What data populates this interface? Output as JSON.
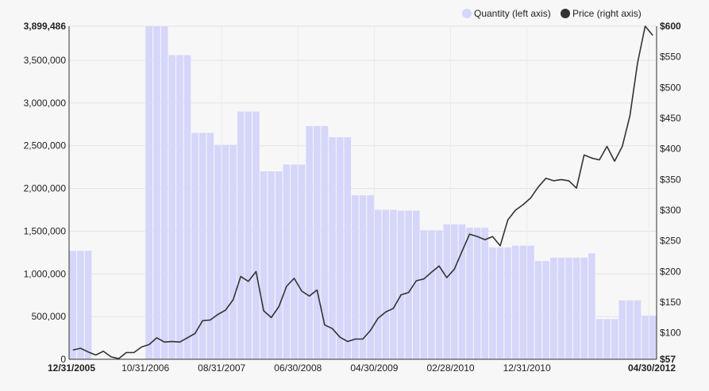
{
  "chart_data": {
    "type": "bar+line",
    "legend": {
      "placement": "top-right",
      "items": [
        {
          "label": "Quantity (left axis)",
          "color": "#d6d6fa"
        },
        {
          "label": "Price (right axis)",
          "color": "#333333"
        }
      ]
    },
    "x_ticks": [
      {
        "label": "12/31/2005",
        "bold": true
      },
      {
        "label": "10/31/2006",
        "bold": false
      },
      {
        "label": "08/31/2007",
        "bold": false
      },
      {
        "label": "06/30/2008",
        "bold": false
      },
      {
        "label": "04/30/2009",
        "bold": false
      },
      {
        "label": "02/28/2010",
        "bold": false
      },
      {
        "label": "12/31/2010",
        "bold": false
      },
      {
        "label": "04/30/2012",
        "bold": true
      }
    ],
    "x_tick_index": [
      0,
      10,
      20,
      30,
      40,
      50,
      60,
      76
    ],
    "left_axis": {
      "min": 0,
      "max": 3899486,
      "ticks": [
        {
          "value": 0,
          "label": "0"
        },
        {
          "value": 500000,
          "label": "500,000"
        },
        {
          "value": 1000000,
          "label": "1,000,000"
        },
        {
          "value": 1500000,
          "label": "1,500,000"
        },
        {
          "value": 2000000,
          "label": "2,000,000"
        },
        {
          "value": 2500000,
          "label": "2,500,000"
        },
        {
          "value": 3000000,
          "label": "3,000,000"
        },
        {
          "value": 3500000,
          "label": "3,500,000"
        },
        {
          "value": 3899486,
          "label": "3,899,486",
          "bold": true
        }
      ]
    },
    "right_axis": {
      "min": 57,
      "max": 600,
      "ticks": [
        {
          "value": 57,
          "label": "$57",
          "bold": true
        },
        {
          "value": 100,
          "label": "$100"
        },
        {
          "value": 150,
          "label": "$150"
        },
        {
          "value": 200,
          "label": "$200"
        },
        {
          "value": 250,
          "label": "$250"
        },
        {
          "value": 300,
          "label": "$300"
        },
        {
          "value": 350,
          "label": "$350"
        },
        {
          "value": 400,
          "label": "$400"
        },
        {
          "value": 450,
          "label": "$450"
        },
        {
          "value": 500,
          "label": "$500"
        },
        {
          "value": 550,
          "label": "$550"
        },
        {
          "value": 600,
          "label": "$600",
          "bold": true
        }
      ]
    },
    "grid": true,
    "series": [
      {
        "name": "Quantity (left axis)",
        "kind": "bar",
        "values": [
          1270000,
          1270000,
          1270000,
          0,
          0,
          0,
          0,
          0,
          0,
          0,
          3899486,
          3899486,
          3899486,
          3560000,
          3560000,
          3560000,
          2650000,
          2650000,
          2650000,
          2510000,
          2510000,
          2510000,
          2900000,
          2900000,
          2900000,
          2200000,
          2200000,
          2200000,
          2280000,
          2280000,
          2280000,
          2730000,
          2730000,
          2730000,
          2600000,
          2600000,
          2600000,
          1920000,
          1920000,
          1920000,
          1750000,
          1750000,
          1750000,
          1740000,
          1740000,
          1740000,
          1510000,
          1510000,
          1510000,
          1580000,
          1580000,
          1580000,
          1540000,
          1540000,
          1540000,
          1310000,
          1310000,
          1310000,
          1330000,
          1330000,
          1330000,
          1150000,
          1150000,
          1190000,
          1190000,
          1190000,
          1190000,
          1190000,
          1240000,
          470000,
          470000,
          470000,
          690000,
          690000,
          690000,
          510000,
          510000
        ]
      },
      {
        "name": "Price (right axis)",
        "kind": "line",
        "values": [
          72,
          75,
          69,
          64,
          70,
          61,
          58,
          68,
          68,
          77,
          81,
          92,
          85,
          86,
          85,
          92,
          99,
          120,
          121,
          130,
          137,
          154,
          192,
          184,
          200,
          136,
          125,
          143,
          176,
          189,
          168,
          160,
          170,
          113,
          107,
          93,
          86,
          90,
          90,
          104,
          124,
          134,
          140,
          162,
          166,
          185,
          188,
          199,
          209,
          190,
          204,
          233,
          261,
          257,
          252,
          257,
          242,
          284,
          300,
          309,
          320,
          338,
          352,
          348,
          350,
          348,
          336,
          390,
          385,
          382,
          404,
          380,
          404,
          454,
          540,
          600,
          585
        ]
      }
    ]
  }
}
